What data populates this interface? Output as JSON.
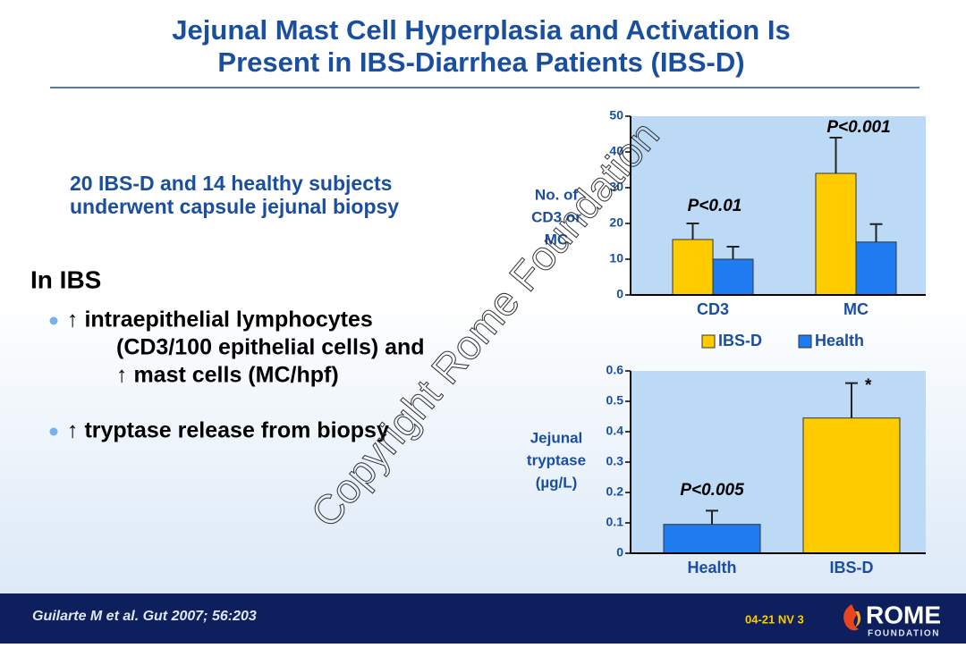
{
  "title": [
    "Jejunal Mast Cell Hyperplasia and Activation Is",
    "Present in IBS-Diarrhea Patients (IBS-D)"
  ],
  "study": [
    "20 IBS-D  and 14 healthy subjects",
    "underwent capsule jejunal biopsy"
  ],
  "heading": "In IBS",
  "bullets": [
    [
      "↑ intraepithelial lymphocytes",
      "(CD3/100 epithelial cells) and",
      "↑ mast cells (MC/hpf)"
    ],
    [
      "↑ tryptase release from biopsy"
    ]
  ],
  "watermark": "Copyright Rome Foundation",
  "footer": {
    "citation": "Guilarte M et al. Gut 2007; 56:203",
    "code": "04-21  NV 3",
    "logo": "ROME",
    "logo_sub": "FOUNDATION"
  },
  "chart_data": [
    {
      "type": "bar",
      "y_label": [
        "No. of",
        "CD3 or",
        "MC"
      ],
      "categories": [
        "CD3",
        "MC"
      ],
      "series": [
        {
          "name": "IBS-D",
          "color": "#ffcc00",
          "values": [
            15.5,
            34
          ],
          "errors": [
            4.5,
            10
          ]
        },
        {
          "name": "Health",
          "color": "#1e7cf0",
          "values": [
            10,
            14.8
          ],
          "errors": [
            3.5,
            5
          ]
        }
      ],
      "ylim": [
        0,
        50
      ],
      "yticks": [
        0,
        10,
        20,
        30,
        40,
        50
      ],
      "annotations": [
        "P<0.01",
        "P<0.001"
      ],
      "legend": "bottom"
    },
    {
      "type": "bar",
      "y_label": [
        "Jejunal",
        "tryptase",
        "(µg/L)"
      ],
      "categories": [
        "Health",
        "IBS-D"
      ],
      "values": [
        0.095,
        0.445
      ],
      "errors": [
        0.045,
        0.115
      ],
      "colors": [
        "#1e7cf0",
        "#ffcc00"
      ],
      "ylim": [
        0,
        0.6
      ],
      "yticks": [
        0,
        0.1,
        0.2,
        0.3,
        0.4,
        0.5,
        0.6
      ],
      "annotations": [
        "P<0.005",
        "*"
      ]
    }
  ]
}
